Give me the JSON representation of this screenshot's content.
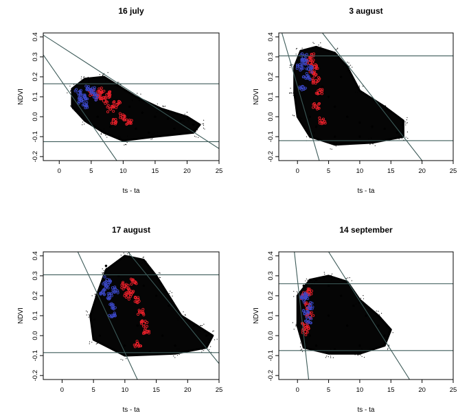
{
  "chart_data": [
    {
      "type": "scatter",
      "title": "16 july",
      "xlabel": "ts - ta",
      "ylabel": "NDVI",
      "xlim": [
        -2.5,
        25
      ],
      "ylim": [
        -0.22,
        0.42
      ],
      "xticks": [
        0,
        5,
        10,
        15,
        20,
        25
      ],
      "yticks": [
        -0.2,
        -0.1,
        0.0,
        0.1,
        0.2,
        0.3,
        0.4
      ],
      "grid": false,
      "series": [
        {
          "color": "#000000",
          "role": "all pixels",
          "points": [
            [
              3,
              0.13
            ],
            [
              5,
              0.14
            ],
            [
              7,
              0.12
            ],
            [
              9,
              0.08
            ],
            [
              11,
              0.05
            ],
            [
              13,
              0.02
            ],
            [
              15,
              0.0
            ],
            [
              17,
              -0.01
            ],
            [
              19,
              -0.02
            ],
            [
              21,
              -0.04
            ],
            [
              12,
              -0.06
            ],
            [
              8,
              -0.05
            ],
            [
              6,
              0.0
            ],
            [
              14,
              -0.08
            ],
            [
              18,
              -0.06
            ]
          ]
        },
        {
          "color": "#e8202a",
          "role": "highlight",
          "points": [
            [
              5,
              0.12
            ],
            [
              6,
              0.1
            ],
            [
              7,
              0.08
            ],
            [
              6.5,
              0.13
            ],
            [
              7.5,
              0.11
            ],
            [
              8,
              0.04
            ],
            [
              10,
              0.0
            ],
            [
              11,
              -0.03
            ],
            [
              9,
              0.06
            ],
            [
              8.5,
              -0.02
            ]
          ]
        },
        {
          "color": "#3b48c8",
          "role": "highlight",
          "points": [
            [
              3,
              0.12
            ],
            [
              4,
              0.1
            ],
            [
              4.5,
              0.14
            ],
            [
              3.5,
              0.08
            ],
            [
              5,
              0.13
            ],
            [
              4,
              0.06
            ],
            [
              5.5,
              0.1
            ]
          ]
        }
      ],
      "reference_lines": [
        {
          "kind": "h",
          "y": 0.165
        },
        {
          "kind": "h",
          "y": -0.125
        },
        {
          "kind": "segment",
          "from": [
            -2.5,
            0.41
          ],
          "to": [
            25,
            -0.16
          ]
        },
        {
          "kind": "segment",
          "from": [
            -2.5,
            0.31
          ],
          "to": [
            9,
            -0.22
          ]
        }
      ]
    },
    {
      "type": "scatter",
      "title": "3 august",
      "xlabel": "ts - ta",
      "ylabel": "NDVI",
      "xlim": [
        -3,
        25
      ],
      "ylim": [
        -0.22,
        0.42
      ],
      "xticks": [
        0,
        5,
        10,
        15,
        20,
        25
      ],
      "yticks": [
        -0.2,
        -0.1,
        0.0,
        0.1,
        0.2,
        0.3,
        0.4
      ],
      "grid": false,
      "series": [
        {
          "color": "#000000",
          "role": "all pixels",
          "points": [
            [
              1,
              0.3
            ],
            [
              2,
              0.25
            ],
            [
              3,
              0.2
            ],
            [
              4,
              0.15
            ],
            [
              5,
              0.1
            ],
            [
              6,
              0.05
            ],
            [
              8,
              0.0
            ],
            [
              10,
              -0.03
            ],
            [
              12,
              -0.05
            ],
            [
              14,
              -0.06
            ],
            [
              16,
              -0.08
            ],
            [
              3,
              -0.05
            ],
            [
              2,
              0.0
            ],
            [
              6,
              -0.1
            ],
            [
              10,
              -0.1
            ],
            [
              7,
              0.2
            ]
          ]
        },
        {
          "color": "#e8202a",
          "role": "highlight",
          "points": [
            [
              2,
              0.27
            ],
            [
              2.5,
              0.22
            ],
            [
              3,
              0.18
            ],
            [
              3.5,
              0.12
            ],
            [
              2.2,
              0.3
            ],
            [
              3,
              0.05
            ],
            [
              4,
              -0.02
            ],
            [
              2.8,
              0.25
            ]
          ]
        },
        {
          "color": "#3b48c8",
          "role": "highlight",
          "points": [
            [
              0.5,
              0.25
            ],
            [
              1,
              0.3
            ],
            [
              1.5,
              0.2
            ],
            [
              0.8,
              0.15
            ],
            [
              1.2,
              0.27
            ],
            [
              1.8,
              0.24
            ]
          ]
        }
      ],
      "reference_lines": [
        {
          "kind": "h",
          "y": 0.305
        },
        {
          "kind": "h",
          "y": -0.12
        },
        {
          "kind": "segment",
          "from": [
            4,
            0.42
          ],
          "to": [
            20,
            -0.22
          ]
        },
        {
          "kind": "segment",
          "from": [
            -2.5,
            0.42
          ],
          "to": [
            3.5,
            -0.22
          ]
        }
      ]
    },
    {
      "type": "scatter",
      "title": "17 august",
      "xlabel": "ts - ta",
      "ylabel": "NDVI",
      "xlim": [
        -3,
        25
      ],
      "ylim": [
        -0.22,
        0.42
      ],
      "xticks": [
        0,
        5,
        10,
        15,
        20,
        25
      ],
      "yticks": [
        -0.2,
        -0.1,
        0.0,
        0.1,
        0.2,
        0.3,
        0.4
      ],
      "grid": false,
      "series": [
        {
          "color": "#000000",
          "role": "all pixels",
          "points": [
            [
              7,
              0.35
            ],
            [
              9,
              0.3
            ],
            [
              11,
              0.28
            ],
            [
              13,
              0.25
            ],
            [
              15,
              0.2
            ],
            [
              17,
              0.15
            ],
            [
              19,
              0.1
            ],
            [
              21,
              0.05
            ],
            [
              23,
              0.0
            ],
            [
              18,
              -0.05
            ],
            [
              14,
              -0.08
            ],
            [
              10,
              -0.05
            ],
            [
              6,
              0.0
            ],
            [
              8,
              0.1
            ],
            [
              12,
              0.05
            ],
            [
              16,
              0.0
            ]
          ]
        },
        {
          "color": "#e8202a",
          "role": "highlight",
          "points": [
            [
              10,
              0.25
            ],
            [
              11,
              0.22
            ],
            [
              12,
              0.18
            ],
            [
              11.5,
              0.27
            ],
            [
              12.5,
              0.12
            ],
            [
              13,
              0.06
            ],
            [
              13.5,
              0.02
            ],
            [
              12,
              -0.04
            ],
            [
              10.5,
              0.2
            ]
          ]
        },
        {
          "color": "#3b48c8",
          "role": "highlight",
          "points": [
            [
              7,
              0.25
            ],
            [
              7.5,
              0.2
            ],
            [
              8,
              0.15
            ],
            [
              6.5,
              0.22
            ],
            [
              8.5,
              0.23
            ],
            [
              7.2,
              0.28
            ],
            [
              8,
              0.1
            ]
          ]
        }
      ],
      "reference_lines": [
        {
          "kind": "h",
          "y": 0.305
        },
        {
          "kind": "h",
          "y": -0.085
        },
        {
          "kind": "segment",
          "from": [
            10.5,
            0.42
          ],
          "to": [
            25,
            -0.14
          ]
        },
        {
          "kind": "segment",
          "from": [
            2.5,
            0.42
          ],
          "to": [
            12,
            -0.22
          ]
        }
      ]
    },
    {
      "type": "scatter",
      "title": "14 september",
      "xlabel": "ts - ta",
      "ylabel": "NDVI",
      "xlim": [
        -3,
        25
      ],
      "ylim": [
        -0.22,
        0.42
      ],
      "xticks": [
        0,
        5,
        10,
        15,
        20,
        25
      ],
      "yticks": [
        -0.2,
        -0.1,
        0.0,
        0.1,
        0.2,
        0.3,
        0.4
      ],
      "grid": false,
      "series": [
        {
          "color": "#000000",
          "role": "all pixels",
          "points": [
            [
              1,
              0.25
            ],
            [
              3,
              0.28
            ],
            [
              5,
              0.25
            ],
            [
              7,
              0.2
            ],
            [
              9,
              0.15
            ],
            [
              11,
              0.1
            ],
            [
              13,
              0.05
            ],
            [
              14,
              0.0
            ],
            [
              10,
              -0.05
            ],
            [
              6,
              -0.07
            ],
            [
              3,
              -0.05
            ],
            [
              2,
              0.0
            ],
            [
              8,
              0.05
            ],
            [
              5,
              0.1
            ]
          ]
        },
        {
          "color": "#e8202a",
          "role": "highlight",
          "points": [
            [
              1,
              0.2
            ],
            [
              1.5,
              0.15
            ],
            [
              1.2,
              0.05
            ],
            [
              2,
              0.1
            ],
            [
              1.8,
              0.22
            ],
            [
              1.3,
              0.02
            ]
          ]
        },
        {
          "color": "#3b48c8",
          "role": "highlight",
          "points": [
            [
              1,
              0.18
            ],
            [
              1.5,
              0.12
            ],
            [
              2,
              0.15
            ],
            [
              1.3,
              0.2
            ],
            [
              1.7,
              0.08
            ]
          ]
        }
      ],
      "reference_lines": [
        {
          "kind": "h",
          "y": 0.26
        },
        {
          "kind": "h",
          "y": -0.075
        },
        {
          "kind": "segment",
          "from": [
            5,
            0.42
          ],
          "to": [
            18,
            -0.22
          ]
        },
        {
          "kind": "segment",
          "from": [
            -0.5,
            0.42
          ],
          "to": [
            1.8,
            -0.22
          ]
        }
      ]
    }
  ]
}
